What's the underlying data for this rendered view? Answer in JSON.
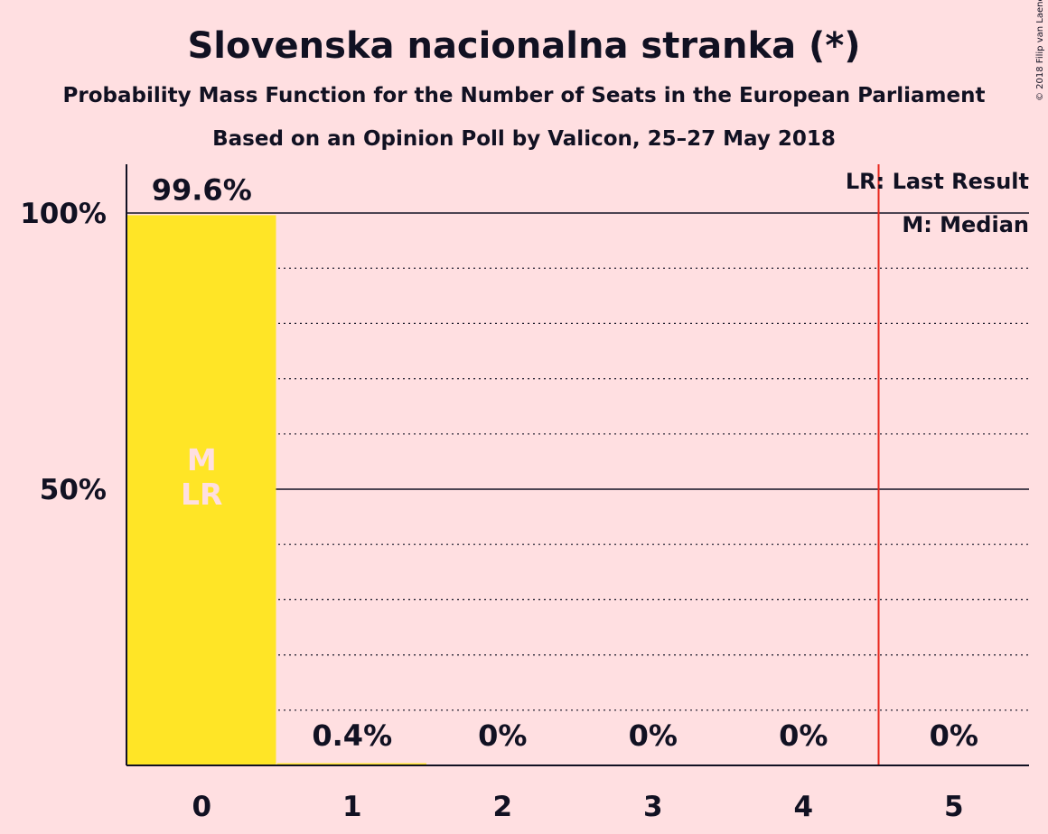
{
  "chart_data": {
    "type": "bar",
    "title": "Slovenska nacionalna stranka (*)",
    "subtitle_1": "Probability Mass Function for the Number of Seats in the European Parliament",
    "subtitle_2": "Based on an Opinion Poll by Valicon, 25–27 May 2018",
    "categories": [
      "0",
      "1",
      "2",
      "3",
      "4",
      "5"
    ],
    "values": [
      99.6,
      0.4,
      0,
      0,
      0,
      0
    ],
    "value_labels": [
      "99.6%",
      "0.4%",
      "0%",
      "0%",
      "0%",
      "0%"
    ],
    "y_ticks": [
      {
        "value": 50,
        "label": "50%"
      },
      {
        "value": 100,
        "label": "100%"
      }
    ],
    "ylim": [
      0,
      108
    ],
    "grid": {
      "dotted_step": 10,
      "solid_at": [
        50,
        100
      ]
    },
    "last_result_line_between": [
      4,
      5
    ],
    "median_seat": 0,
    "last_result_seat": 0,
    "in_bar_labels": [
      "M",
      "LR"
    ],
    "legend": [
      "LR: Last Result",
      "M: Median"
    ],
    "legend_placement": "top-right",
    "colors": {
      "background": "#FFDFE1",
      "bar": "#FFE526",
      "axis": "#111122",
      "last_result_line": "#E8261C",
      "in_bar_text": "#FFDFE1"
    },
    "copyright": "© 2018 Filip van Laenen"
  }
}
